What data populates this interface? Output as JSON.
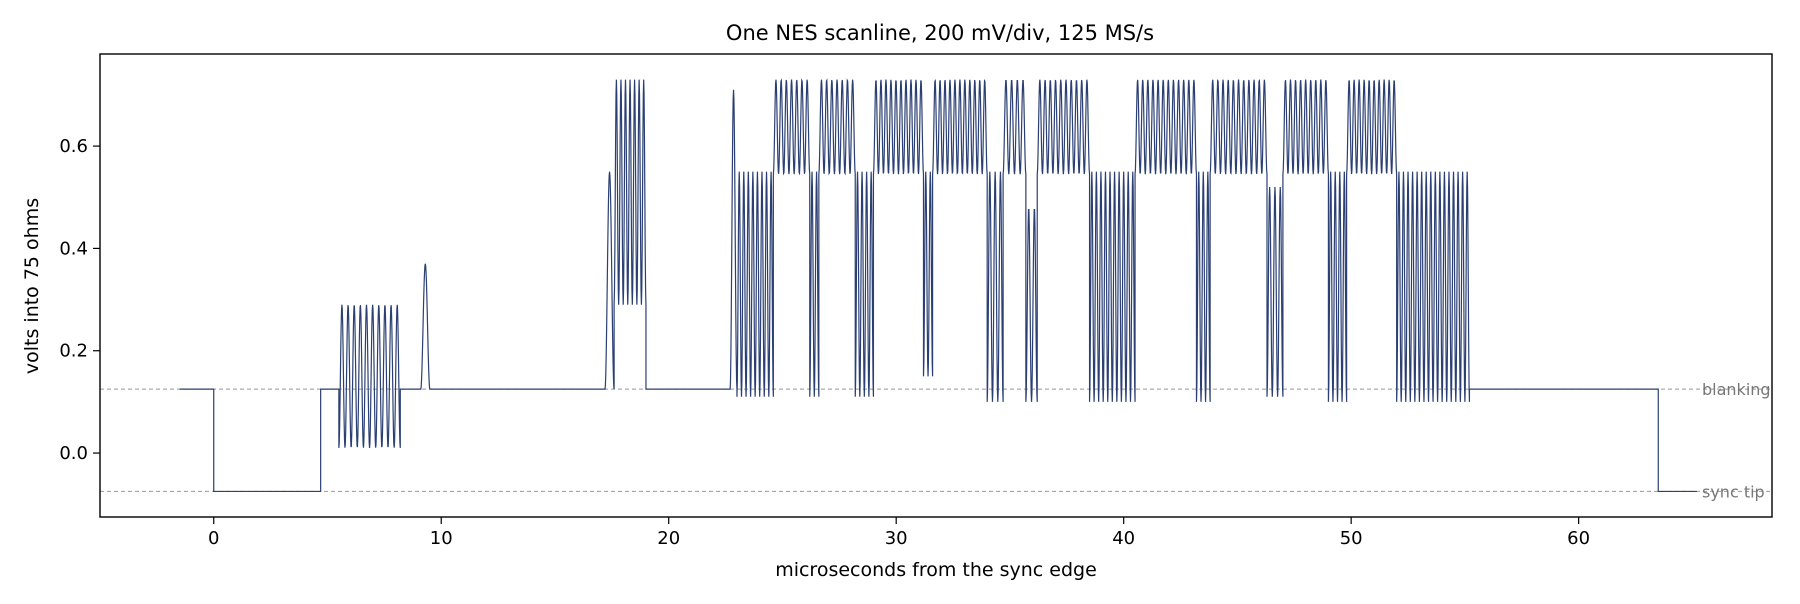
{
  "chart_data": {
    "type": "line",
    "title": "One NES scanline, 200 mV/div, 125 MS/s",
    "xlabel": "microseconds from the sync edge",
    "ylabel": "volts into 75 ohms",
    "xlim": [
      -5,
      68.5
    ],
    "ylim": [
      -0.125,
      0.78
    ],
    "xticks": [
      0,
      10,
      20,
      30,
      40,
      50,
      60
    ],
    "yticks": [
      0.0,
      0.2,
      0.4,
      0.6
    ],
    "grid": false,
    "legend": "none",
    "color": "#2b3f73",
    "reference_lines": [
      {
        "label": "blanking",
        "y": 0.125
      },
      {
        "label": "sync tip",
        "y": -0.075
      }
    ],
    "segments": [
      {
        "x0": -1.5,
        "x1": 0.0,
        "kind": "flat",
        "level": 0.125
      },
      {
        "x0": 0.0,
        "x1": 4.7,
        "kind": "flat",
        "level": -0.075
      },
      {
        "x0": 4.7,
        "x1": 5.5,
        "kind": "flat",
        "level": 0.125
      },
      {
        "x0": 5.5,
        "x1": 8.2,
        "kind": "osc",
        "hi": 0.29,
        "lo": 0.01,
        "cycles": 10
      },
      {
        "x0": 8.2,
        "x1": 9.1,
        "kind": "flat",
        "level": 0.125
      },
      {
        "x0": 9.1,
        "x1": 9.5,
        "kind": "osc",
        "hi": 0.37,
        "lo": 0.125,
        "cycles": 1
      },
      {
        "x0": 9.5,
        "x1": 17.2,
        "kind": "flat",
        "level": 0.125
      },
      {
        "x0": 17.2,
        "x1": 17.6,
        "kind": "osc",
        "hi": 0.55,
        "lo": 0.125,
        "cycles": 1
      },
      {
        "x0": 17.6,
        "x1": 19.0,
        "kind": "osc",
        "hi": 0.73,
        "lo": 0.29,
        "cycles": 7
      },
      {
        "x0": 19.0,
        "x1": 22.7,
        "kind": "flat",
        "level": 0.125
      },
      {
        "x0": 22.7,
        "x1": 23.0,
        "kind": "osc",
        "hi": 0.71,
        "lo": 0.125,
        "cycles": 1
      },
      {
        "x0": 23.0,
        "x1": 24.6,
        "kind": "osc",
        "hi": 0.55,
        "lo": 0.11,
        "cycles": 8
      },
      {
        "x0": 24.6,
        "x1": 26.2,
        "kind": "osc",
        "hi": 0.73,
        "lo": 0.545,
        "cycles": 7
      },
      {
        "x0": 26.2,
        "x1": 26.6,
        "kind": "osc",
        "hi": 0.55,
        "lo": 0.11,
        "cycles": 2
      },
      {
        "x0": 26.6,
        "x1": 28.2,
        "kind": "osc",
        "hi": 0.73,
        "lo": 0.545,
        "cycles": 7
      },
      {
        "x0": 28.2,
        "x1": 29.0,
        "kind": "osc",
        "hi": 0.55,
        "lo": 0.11,
        "cycles": 4
      },
      {
        "x0": 29.0,
        "x1": 31.2,
        "kind": "osc",
        "hi": 0.73,
        "lo": 0.545,
        "cycles": 10
      },
      {
        "x0": 31.2,
        "x1": 31.6,
        "kind": "osc",
        "hi": 0.55,
        "lo": 0.15,
        "cycles": 2
      },
      {
        "x0": 31.6,
        "x1": 34.0,
        "kind": "osc",
        "hi": 0.73,
        "lo": 0.545,
        "cycles": 11
      },
      {
        "x0": 34.0,
        "x1": 34.7,
        "kind": "osc",
        "hi": 0.55,
        "lo": 0.1,
        "cycles": 3
      },
      {
        "x0": 34.7,
        "x1": 35.7,
        "kind": "osc",
        "hi": 0.73,
        "lo": 0.545,
        "cycles": 4
      },
      {
        "x0": 35.7,
        "x1": 36.2,
        "kind": "osc",
        "hi": 0.48,
        "lo": 0.1,
        "cycles": 2
      },
      {
        "x0": 36.2,
        "x1": 38.5,
        "kind": "osc",
        "hi": 0.73,
        "lo": 0.545,
        "cycles": 10
      },
      {
        "x0": 38.5,
        "x1": 40.5,
        "kind": "osc",
        "hi": 0.55,
        "lo": 0.1,
        "cycles": 10
      },
      {
        "x0": 40.5,
        "x1": 43.2,
        "kind": "osc",
        "hi": 0.73,
        "lo": 0.545,
        "cycles": 12
      },
      {
        "x0": 43.2,
        "x1": 43.8,
        "kind": "osc",
        "hi": 0.55,
        "lo": 0.1,
        "cycles": 3
      },
      {
        "x0": 43.8,
        "x1": 46.3,
        "kind": "osc",
        "hi": 0.73,
        "lo": 0.545,
        "cycles": 11
      },
      {
        "x0": 46.3,
        "x1": 47.0,
        "kind": "osc",
        "hi": 0.52,
        "lo": 0.11,
        "cycles": 3
      },
      {
        "x0": 47.0,
        "x1": 49.0,
        "kind": "osc",
        "hi": 0.73,
        "lo": 0.545,
        "cycles": 9
      },
      {
        "x0": 49.0,
        "x1": 49.8,
        "kind": "osc",
        "hi": 0.55,
        "lo": 0.1,
        "cycles": 4
      },
      {
        "x0": 49.8,
        "x1": 52.0,
        "kind": "osc",
        "hi": 0.73,
        "lo": 0.545,
        "cycles": 10
      },
      {
        "x0": 52.0,
        "x1": 55.2,
        "kind": "osc",
        "hi": 0.55,
        "lo": 0.1,
        "cycles": 16
      },
      {
        "x0": 55.2,
        "x1": 63.5,
        "kind": "flat",
        "level": 0.125
      },
      {
        "x0": 63.5,
        "x1": 65.2,
        "kind": "flat",
        "level": -0.075
      }
    ]
  }
}
